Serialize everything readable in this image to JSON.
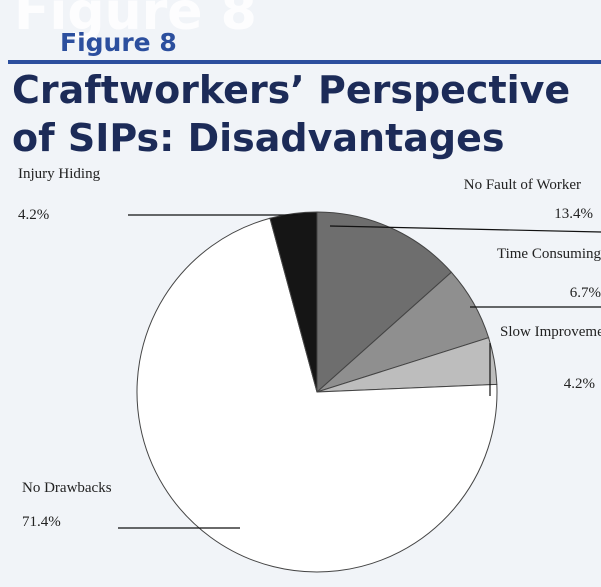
{
  "chart_data": {
    "type": "pie",
    "figure": "Figure 8",
    "title": "Craftworkers’ Perspective of SIPs: Disadvantages",
    "categories": [
      "No Fault of Worker",
      "Time Consuming",
      "Slow Improvement",
      "No Drawbacks",
      "Injury Hiding"
    ],
    "values": [
      13.4,
      6.7,
      4.2,
      71.4,
      4.2
    ],
    "value_labels": [
      "13.4%",
      "6.7%",
      "4.2%",
      "71.4%",
      "4.2%"
    ],
    "colors": [
      "#6e6e6e",
      "#8f8f8f",
      "#bdbdbd",
      "#ffffff",
      "#151515"
    ]
  }
}
